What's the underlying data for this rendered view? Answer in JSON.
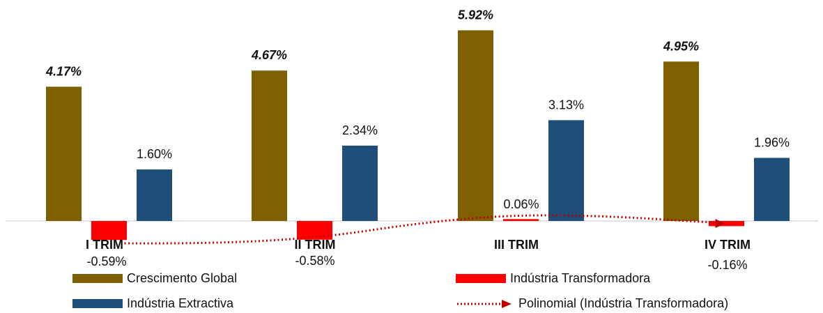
{
  "chart_data": {
    "type": "bar",
    "categories": [
      "I TRIM",
      "II TRIM",
      "III TRIM",
      "IV TRIM"
    ],
    "series": [
      {
        "name": "Crescimento Global",
        "values": [
          4.17,
          4.67,
          5.92,
          4.95
        ],
        "labels": [
          "4.17%",
          "4.67%",
          "5.92%",
          "4.95%"
        ],
        "color": "#7F6000"
      },
      {
        "name": "Indústria Transformadora",
        "values": [
          -0.59,
          -0.58,
          0.06,
          -0.16
        ],
        "labels": [
          "-0.59%",
          "-0.58%",
          "0.06%",
          "-0.16%"
        ],
        "color": "#FF0000"
      },
      {
        "name": "Indústria Extractiva",
        "values": [
          1.6,
          2.34,
          3.13,
          1.96
        ],
        "labels": [
          "1.60%",
          "2.34%",
          "3.13%",
          "1.96%"
        ],
        "color": "#1F4E79"
      }
    ],
    "trendline": {
      "name": "Polinomial (Indústria Transformadora)",
      "series": "Indústria Transformadora",
      "type": "polynomial",
      "color": "#C00000"
    },
    "ylim": [
      -0.9,
      6.2
    ],
    "grid": false,
    "legend_position": "bottom"
  }
}
